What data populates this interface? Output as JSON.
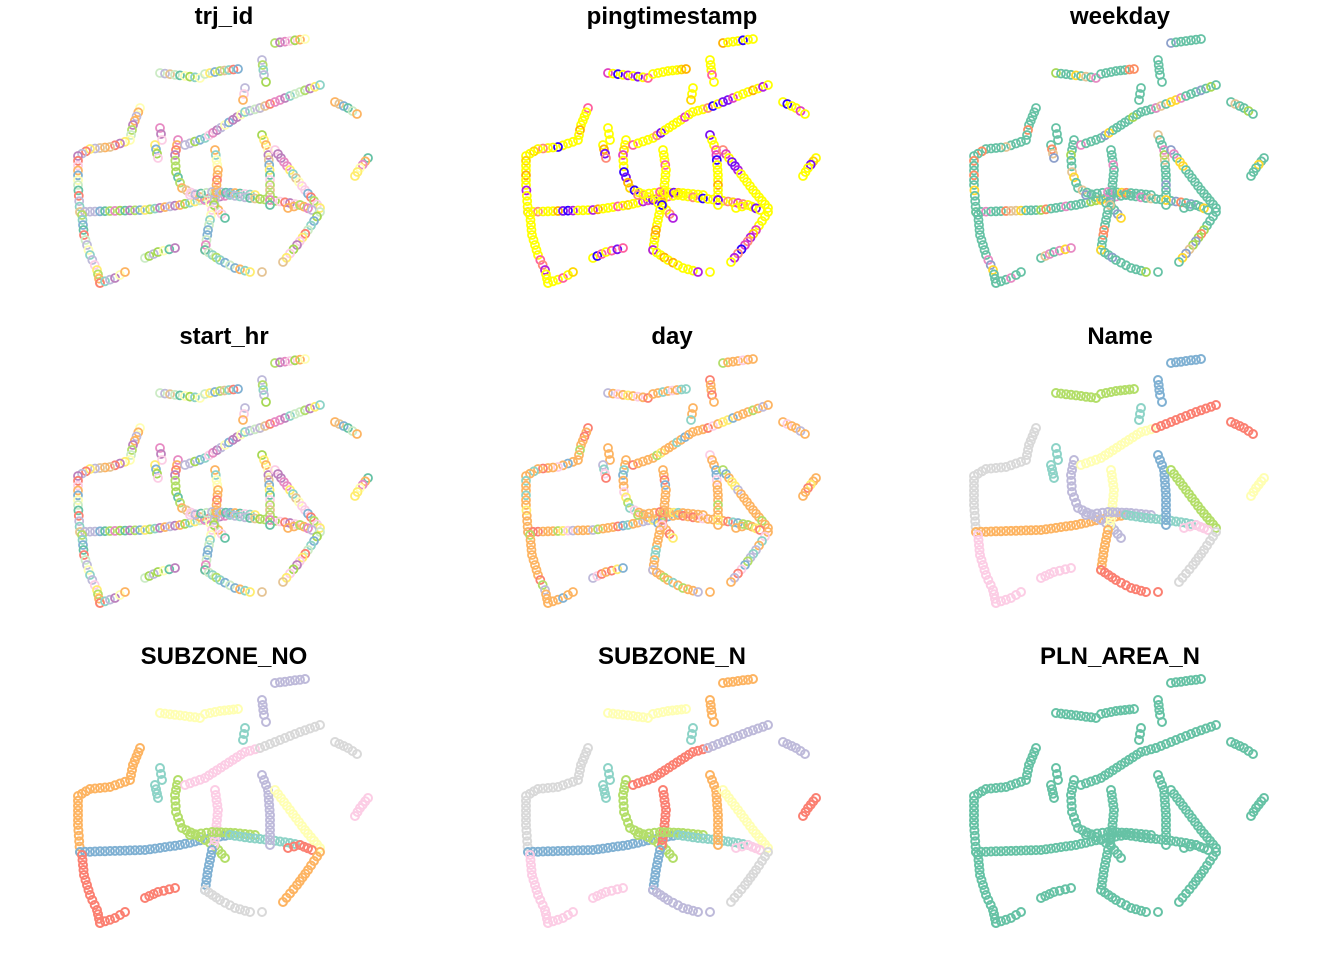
{
  "figure": {
    "panels": [
      {
        "id": "trj_id",
        "title": "trj_id",
        "palette": "multi"
      },
      {
        "id": "pingtimestamp",
        "title": "pingtimestamp",
        "palette": "time"
      },
      {
        "id": "weekday",
        "title": "weekday",
        "palette": "weekday"
      },
      {
        "id": "start_hr",
        "title": "start_hr",
        "palette": "multi"
      },
      {
        "id": "day",
        "title": "day",
        "palette": "day"
      },
      {
        "id": "Name",
        "title": "Name",
        "palette": "regions_a"
      },
      {
        "id": "SUBZONE_NO",
        "title": "SUBZONE_NO",
        "palette": "regions_b"
      },
      {
        "id": "SUBZONE_N",
        "title": "SUBZONE_N",
        "palette": "regions_c"
      },
      {
        "id": "PLN_AREA_N",
        "title": "PLN_AREA_N",
        "palette": "single"
      }
    ],
    "colors": {
      "multi": [
        "#8dd3c7",
        "#fdb462",
        "#fb8072",
        "#80b1d3",
        "#b3de69",
        "#fccde5",
        "#bebada",
        "#ffffb3",
        "#bc80bd",
        "#ccebc5",
        "#ffed6f",
        "#66c2a5",
        "#e78ac3",
        "#a6d854",
        "#e5c494"
      ],
      "time": [
        "#ffff00",
        "#ffd700",
        "#ffb000",
        "#ff8c7a",
        "#ff5f9e",
        "#e040c0",
        "#b020e0",
        "#7a10f0",
        "#3000ff"
      ],
      "weekday": [
        "#66c2a5",
        "#fc8d62",
        "#8da0cb",
        "#e78ac3",
        "#a6d854",
        "#ffd92f",
        "#e5c494"
      ],
      "day": [
        "#fdb462",
        "#8dd3c7",
        "#b3de69",
        "#fb8072",
        "#80b1d3",
        "#bebada",
        "#ffed6f",
        "#fccde5"
      ],
      "regions_a": [
        "#d9d9d9",
        "#fdb462",
        "#fccde5",
        "#b3de69",
        "#80b1d3",
        "#8dd3c7",
        "#bebada",
        "#ffffb3",
        "#fb8072"
      ],
      "regions_b": [
        "#fdb462",
        "#80b1d3",
        "#fb8072",
        "#ffffb3",
        "#bebada",
        "#8dd3c7",
        "#b3de69",
        "#fccde5",
        "#d9d9d9"
      ],
      "regions_c": [
        "#d9d9d9",
        "#80b1d3",
        "#fccde5",
        "#ffffb3",
        "#fdb462",
        "#8dd3c7",
        "#b3de69",
        "#fb8072",
        "#bebada"
      ],
      "single": [
        "#66c2a5"
      ]
    }
  }
}
